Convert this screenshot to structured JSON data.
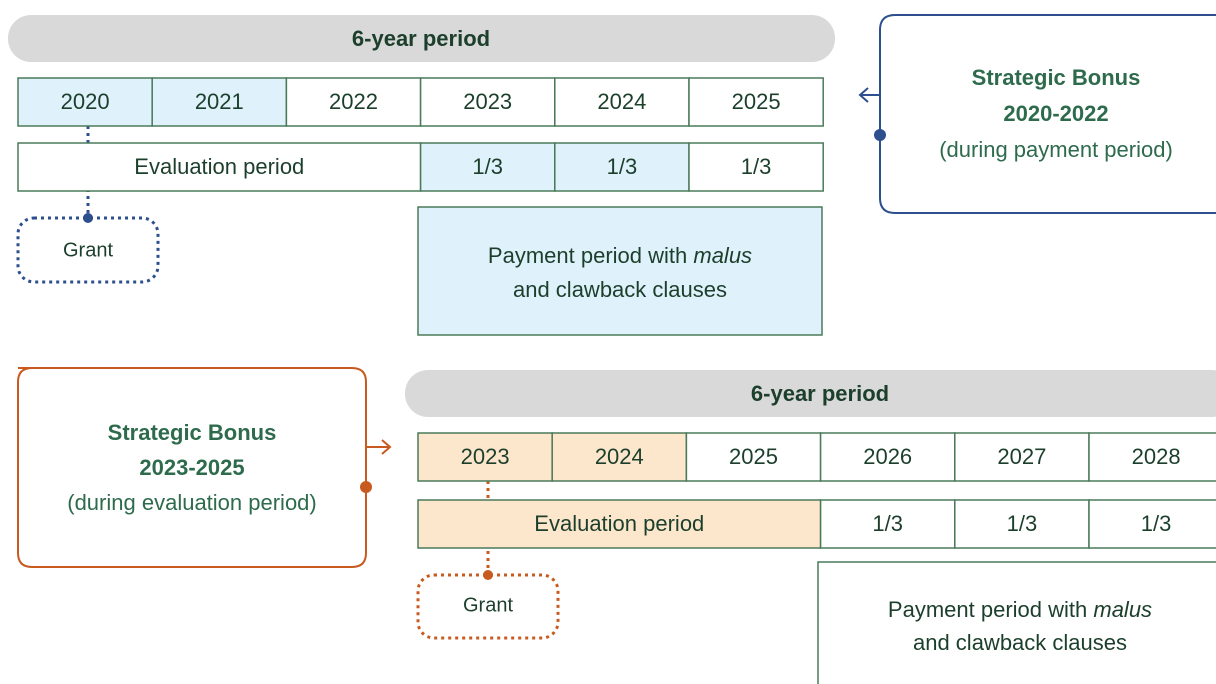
{
  "top": {
    "header": "6-year period",
    "years": [
      "2020",
      "2021",
      "2022",
      "2023",
      "2024",
      "2025"
    ],
    "evaluation": "Evaluation period",
    "shares": [
      "1/3",
      "1/3",
      "1/3"
    ],
    "grant": "Grant",
    "payment": {
      "text": "Payment period with",
      "italic": "malus",
      "line2": "and clawback clauses"
    },
    "bonus": {
      "title": "Strategic Bonus",
      "years": "2020-2022",
      "note": "(during payment period)"
    }
  },
  "bottom": {
    "header": "6-year period",
    "years": [
      "2023",
      "2024",
      "2025",
      "2026",
      "2027",
      "2028"
    ],
    "evaluation": "Evaluation period",
    "shares": [
      "1/3",
      "1/3",
      "1/3"
    ],
    "grant": "Grant",
    "payment": {
      "text": "Payment period with",
      "italic": "malus",
      "line2": "and clawback clauses"
    },
    "bonus": {
      "title": "Strategic Bonus",
      "years": "2023-2025",
      "note": "(during evaluation period)"
    }
  }
}
